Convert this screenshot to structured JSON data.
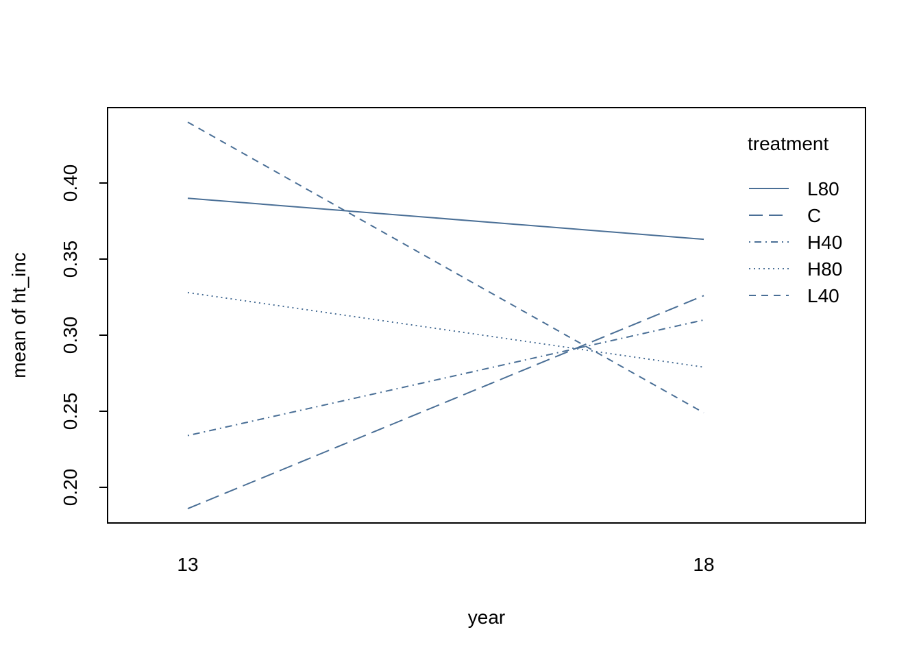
{
  "chart_data": {
    "type": "line",
    "title": "",
    "xlabel": "year",
    "ylabel": "mean of  ht_inc",
    "x": [
      "13",
      "18"
    ],
    "ylim": [
      0.18,
      0.45
    ],
    "yticks": [
      "0.20",
      "0.25",
      "0.30",
      "0.35",
      "0.40"
    ],
    "grid": false,
    "legend_title": "treatment",
    "legend_position": "top-right",
    "line_color": "#4a6f96",
    "series": [
      {
        "name": "L80",
        "dash": "solid",
        "values": [
          0.39,
          0.363
        ]
      },
      {
        "name": "C",
        "dash": "long-dash",
        "values": [
          0.186,
          0.326
        ]
      },
      {
        "name": "H40",
        "dash": "dot-dash",
        "values": [
          0.234,
          0.31
        ]
      },
      {
        "name": "H80",
        "dash": "dotted",
        "values": [
          0.328,
          0.279
        ]
      },
      {
        "name": "L40",
        "dash": "dashed",
        "values": [
          0.44,
          0.249
        ]
      }
    ]
  }
}
